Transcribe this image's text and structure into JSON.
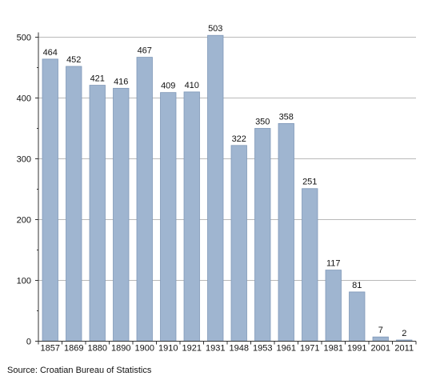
{
  "chart_data": {
    "type": "bar",
    "categories": [
      "1857",
      "1869",
      "1880",
      "1890",
      "1900",
      "1910",
      "1921",
      "1931",
      "1948",
      "1953",
      "1961",
      "1971",
      "1981",
      "1991",
      "2001",
      "2011"
    ],
    "values": [
      464,
      452,
      421,
      416,
      467,
      409,
      410,
      503,
      322,
      350,
      358,
      251,
      117,
      81,
      7,
      2
    ],
    "ylim": [
      0,
      500
    ],
    "yticks": [
      0,
      100,
      200,
      300,
      400,
      500
    ],
    "grid": true,
    "bar_color": "#9fb5d0",
    "bar_edge_color": "#7f98b8",
    "source": "Source: Croatian Bureau of Statistics"
  }
}
